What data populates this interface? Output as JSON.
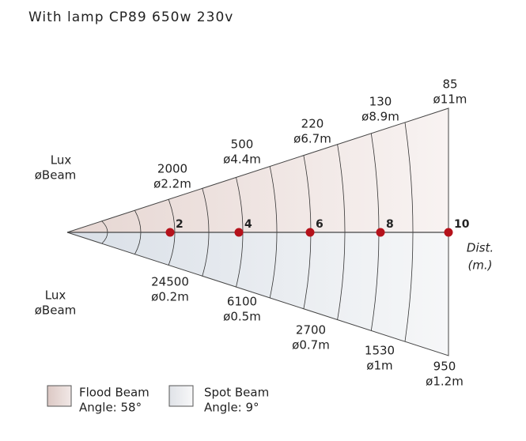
{
  "title": "With lamp CP89 650w 230v",
  "flood": {
    "lux_label": "Lux",
    "beam_label": "øBeam",
    "points": [
      {
        "lux": "2000",
        "beam": "ø2.2m"
      },
      {
        "lux": "500",
        "beam": "ø4.4m"
      },
      {
        "lux": "220",
        "beam": "ø6.7m"
      },
      {
        "lux": "130",
        "beam": "ø8.9m"
      },
      {
        "lux": "85",
        "beam": "ø11m"
      }
    ]
  },
  "spot": {
    "lux_label": "Lux",
    "beam_label": "øBeam",
    "points": [
      {
        "lux": "24500",
        "beam": "ø0.2m"
      },
      {
        "lux": "6100",
        "beam": "ø0.5m"
      },
      {
        "lux": "2700",
        "beam": "ø0.7m"
      },
      {
        "lux": "1530",
        "beam": "ø1m"
      },
      {
        "lux": "950",
        "beam": "ø1.2m"
      }
    ]
  },
  "distances": [
    "2",
    "4",
    "6",
    "8",
    "10"
  ],
  "axis_label": [
    "Dist.",
    "(m.)"
  ],
  "legend": [
    {
      "name": "Flood Beam",
      "angle": "Angle: 58°"
    },
    {
      "name": "Spot Beam",
      "angle": "Angle: 9°"
    }
  ]
}
